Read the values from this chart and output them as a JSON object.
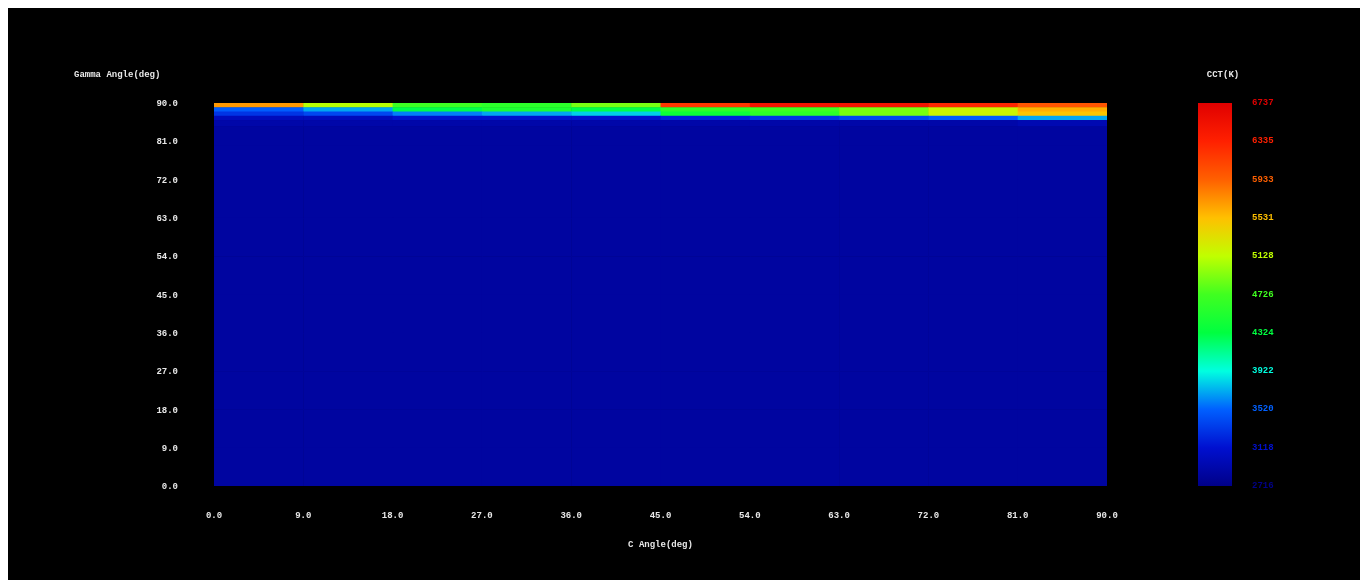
{
  "chart_data": {
    "type": "heatmap",
    "xlabel": "C Angle(deg)",
    "ylabel": "Gamma Angle(deg)",
    "clabel": "CCT(K)",
    "x": [
      4.5,
      13.5,
      22.5,
      31.5,
      40.5,
      49.5,
      58.5,
      67.5,
      76.5,
      85.5
    ],
    "y": [
      89.5,
      88.5,
      87.5,
      86.5,
      85.5,
      83.5,
      76.5,
      67.5,
      58.5,
      49.5,
      40.5,
      31.5,
      22.5,
      13.5,
      4.5
    ],
    "xlim": [
      0,
      90
    ],
    "xticks": [
      {
        "value": 0,
        "label": "0.0"
      },
      {
        "value": 9,
        "label": "9.0"
      },
      {
        "value": 18,
        "label": "18.0"
      },
      {
        "value": 27,
        "label": "27.0"
      },
      {
        "value": 36,
        "label": "36.0"
      },
      {
        "value": 45,
        "label": "45.0"
      },
      {
        "value": 54,
        "label": "54.0"
      },
      {
        "value": 63,
        "label": "63.0"
      },
      {
        "value": 72,
        "label": "72.0"
      },
      {
        "value": 81,
        "label": "81.0"
      },
      {
        "value": 90,
        "label": "90.0"
      }
    ],
    "ylim": [
      0,
      90
    ],
    "yticks": [
      {
        "value": 0,
        "label": "0.0"
      },
      {
        "value": 9,
        "label": "9.0"
      },
      {
        "value": 18,
        "label": "18.0"
      },
      {
        "value": 27,
        "label": "27.0"
      },
      {
        "value": 36,
        "label": "36.0"
      },
      {
        "value": 45,
        "label": "45.0"
      },
      {
        "value": 54,
        "label": "54.0"
      },
      {
        "value": 63,
        "label": "63.0"
      },
      {
        "value": 72,
        "label": "72.0"
      },
      {
        "value": 81,
        "label": "81.0"
      },
      {
        "value": 90,
        "label": "90.0"
      }
    ],
    "clim": [
      2716,
      6737
    ],
    "cticks": [
      2716,
      3118,
      3520,
      3922,
      4324,
      4726,
      5128,
      5531,
      5933,
      6335,
      6737
    ],
    "cells": [
      [
        5700,
        5100,
        4700,
        4600,
        4900,
        6200,
        6500,
        6500,
        6300,
        6000
      ],
      [
        3500,
        3700,
        4300,
        4500,
        4300,
        4600,
        4700,
        4900,
        5200,
        5600
      ],
      [
        3300,
        3400,
        3600,
        3700,
        3800,
        4400,
        4600,
        4900,
        5200,
        5500
      ],
      [
        3000,
        3000,
        3100,
        3100,
        3100,
        3200,
        3300,
        3400,
        3500,
        3700
      ],
      [
        2900,
        2900,
        2900,
        2900,
        2900,
        2900,
        2900,
        2900,
        2900,
        2950
      ],
      [
        2850,
        2850,
        2850,
        2850,
        2850,
        2850,
        2850,
        2850,
        2850,
        2850
      ],
      [
        2850,
        2850,
        2850,
        2850,
        2850,
        2850,
        2850,
        2850,
        2850,
        2850
      ],
      [
        2850,
        2850,
        2850,
        2850,
        2850,
        2850,
        2850,
        2850,
        2850,
        2850
      ],
      [
        2850,
        2850,
        2850,
        2850,
        2850,
        2850,
        2850,
        2850,
        2850,
        2850
      ],
      [
        2850,
        2850,
        2850,
        2850,
        2850,
        2850,
        2850,
        2850,
        2850,
        2850
      ],
      [
        2850,
        2850,
        2850,
        2850,
        2850,
        2850,
        2850,
        2850,
        2850,
        2850
      ],
      [
        2850,
        2850,
        2850,
        2850,
        2850,
        2850,
        2850,
        2850,
        2850,
        2850
      ],
      [
        2850,
        2850,
        2850,
        2850,
        2850,
        2850,
        2850,
        2850,
        2850,
        2850
      ],
      [
        2850,
        2850,
        2850,
        2850,
        2850,
        2850,
        2850,
        2850,
        2850,
        2850
      ],
      [
        2850,
        2850,
        2850,
        2850,
        2850,
        2850,
        2850,
        2850,
        2850,
        2850
      ]
    ],
    "grid": false
  }
}
